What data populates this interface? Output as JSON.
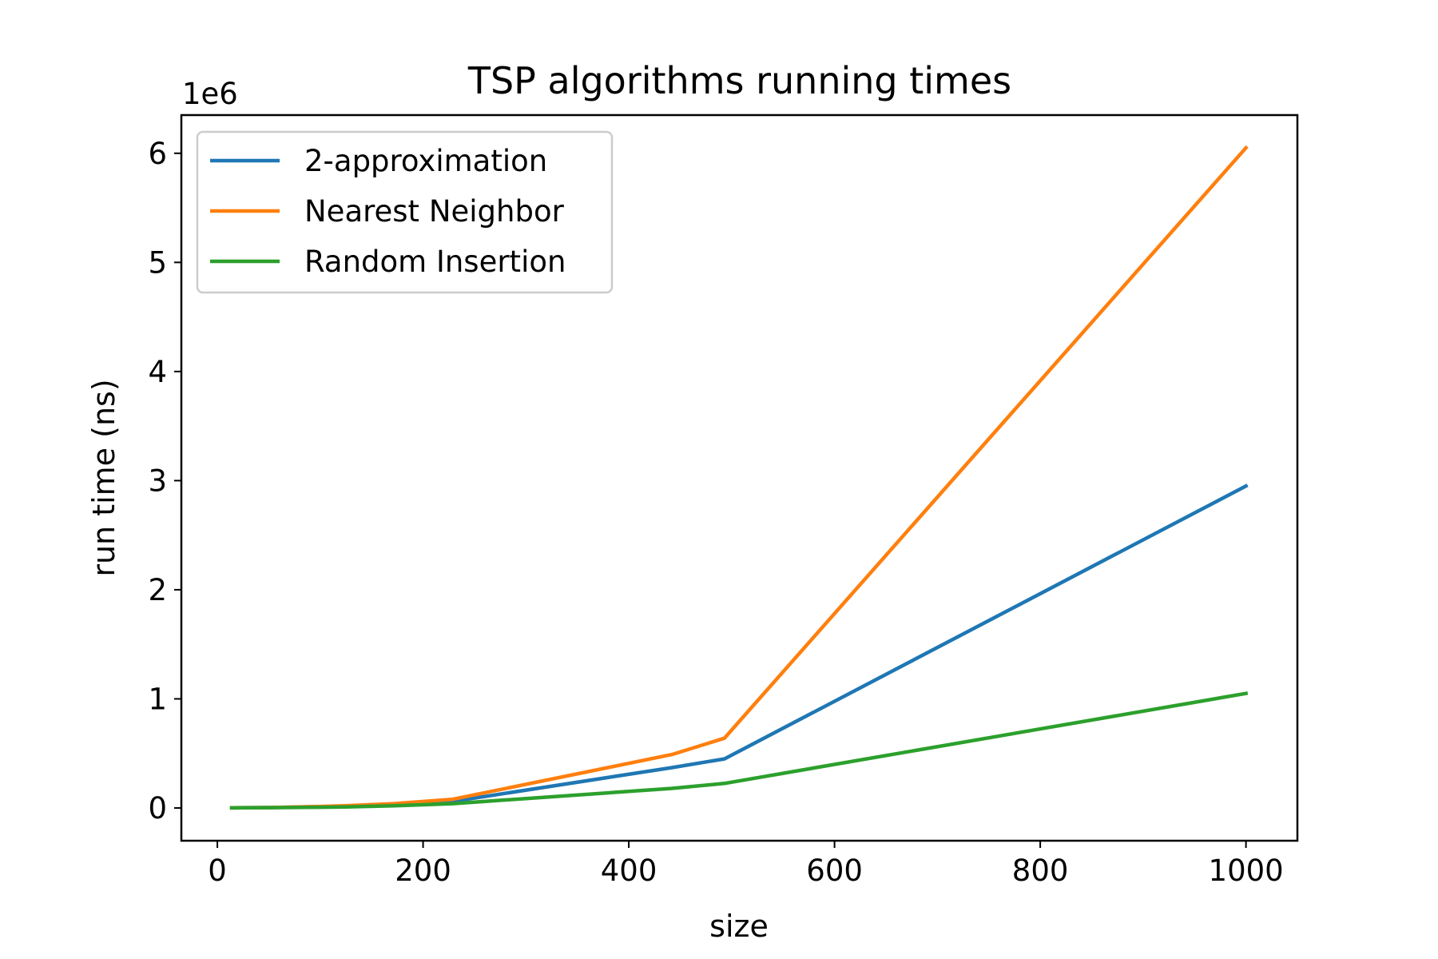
{
  "chart_data": {
    "type": "line",
    "title": "TSP algorithms running times",
    "xlabel": "size",
    "ylabel": "run time (ns)",
    "y_offset_label": "1e6",
    "xlim": [
      -35,
      1050
    ],
    "ylim": [
      -300000,
      6350000
    ],
    "xticks": [
      0,
      200,
      400,
      600,
      800,
      1000
    ],
    "xtick_labels": [
      "0",
      "200",
      "400",
      "600",
      "800",
      "1000"
    ],
    "yticks": [
      0,
      1000000,
      2000000,
      3000000,
      4000000,
      5000000,
      6000000
    ],
    "ytick_labels": [
      "0",
      "1",
      "2",
      "3",
      "4",
      "5",
      "6"
    ],
    "grid": false,
    "legend_position": "upper-left",
    "x": [
      14,
      52,
      100,
      124,
      172,
      229,
      442,
      493,
      1000
    ],
    "series": [
      {
        "name": "2-approximation",
        "color": "#1f77b4",
        "values": [
          2000,
          4000,
          12000,
          16000,
          30000,
          60000,
          370000,
          450000,
          2950000
        ]
      },
      {
        "name": "Nearest Neighbor",
        "color": "#ff7f0e",
        "values": [
          2000,
          4000,
          14000,
          20000,
          40000,
          80000,
          490000,
          640000,
          6050000
        ]
      },
      {
        "name": "Random Insertion",
        "color": "#2ca02c",
        "values": [
          1000,
          3000,
          7000,
          10000,
          20000,
          40000,
          180000,
          225000,
          1050000
        ]
      }
    ]
  }
}
